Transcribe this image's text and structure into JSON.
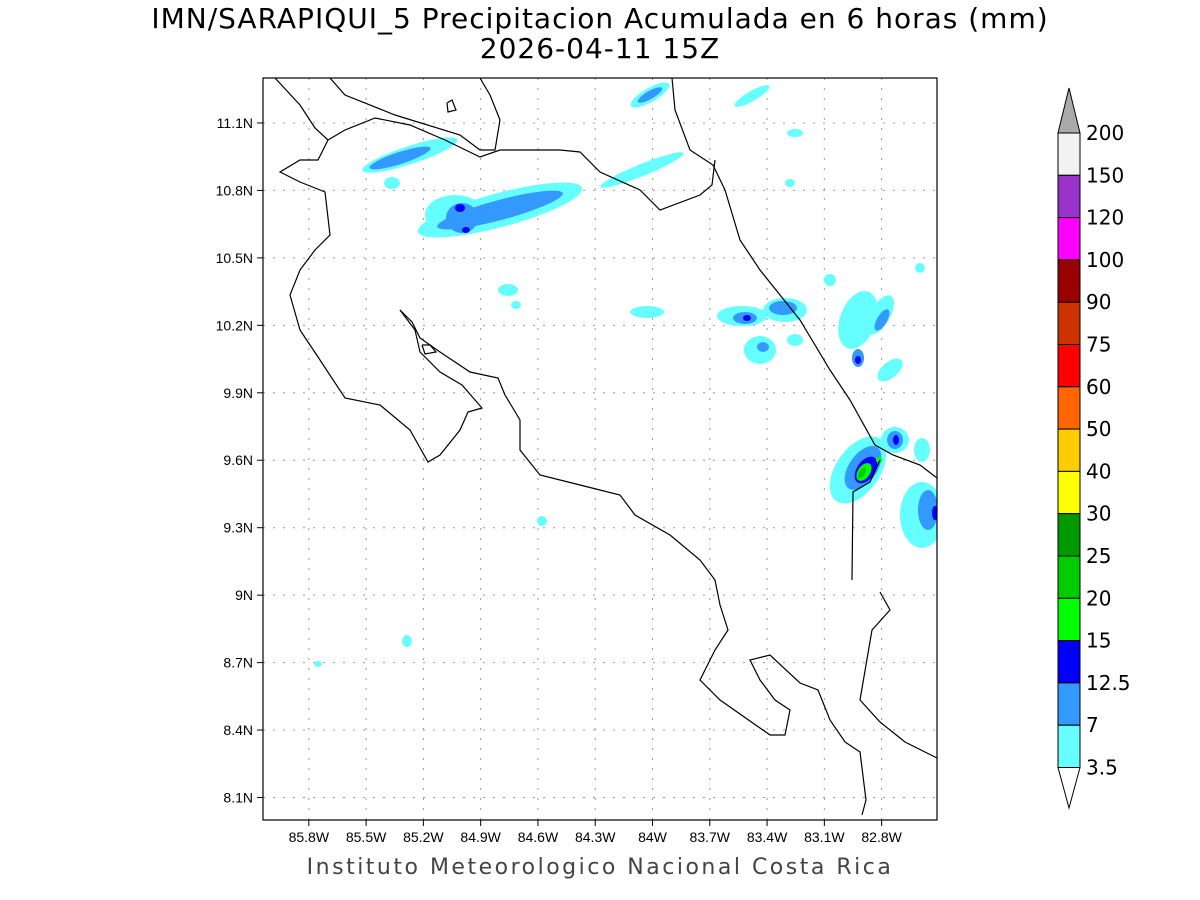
{
  "title": "IMN/SARAPIQUI_5 Precipitacion Acumulada en 6 horas (mm)",
  "subtitle": "2026-04-11 15Z",
  "footer": "Instituto Meteorologico Nacional Costa Rica",
  "map": {
    "lat_range": [
      8.0,
      11.3
    ],
    "lon_range": [
      -86.04,
      -82.51
    ],
    "lat_ticks": [
      "11.1N",
      "10.8N",
      "10.5N",
      "10.2N",
      "9.9N",
      "9.6N",
      "9.3N",
      "9N",
      "8.7N",
      "8.4N",
      "8.1N"
    ],
    "lat_values": [
      11.1,
      10.8,
      10.5,
      10.2,
      9.9,
      9.6,
      9.3,
      9.0,
      8.7,
      8.4,
      8.1
    ],
    "lon_ticks": [
      "85.8W",
      "85.5W",
      "85.2W",
      "84.9W",
      "84.6W",
      "84.3W",
      "84W",
      "83.7W",
      "83.4W",
      "83.1W",
      "82.8W"
    ],
    "lon_values": [
      -85.8,
      -85.5,
      -85.2,
      -84.9,
      -84.6,
      -84.3,
      -84.0,
      -83.7,
      -83.4,
      -83.1,
      -82.8
    ]
  },
  "legend": {
    "labels": [
      "3.5",
      "7",
      "12.5",
      "15",
      "20",
      "25",
      "30",
      "40",
      "50",
      "60",
      "75",
      "90",
      "100",
      "120",
      "150",
      "200"
    ],
    "colors": [
      "#66ffff",
      "#3399ff",
      "#0000ff",
      "#00ff00",
      "#00cc00",
      "#009900",
      "#ffff00",
      "#ffcc00",
      "#ff6600",
      "#ff0000",
      "#cc3300",
      "#990000",
      "#ff00ff",
      "#9933cc",
      "#f2f2f2"
    ],
    "over_color": "#aaaaaa",
    "under_color": "#ffffff"
  }
}
